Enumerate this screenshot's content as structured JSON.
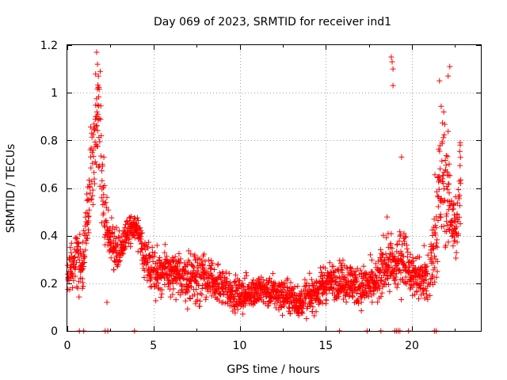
{
  "chart_data": {
    "type": "scatter",
    "title": "Day 069 of 2023, SRMTID for receiver ind1",
    "xlabel": "GPS time / hours",
    "ylabel": "SRMTID / TECUs",
    "xlim": [
      0,
      24
    ],
    "ylim": [
      0,
      1.2
    ],
    "xticks": [
      0,
      5,
      10,
      15,
      20
    ],
    "xtick_labels": [
      "0",
      "5",
      "10",
      "15",
      "20"
    ],
    "yticks": [
      0,
      0.2,
      0.4,
      0.6,
      0.8,
      1.0,
      1.2
    ],
    "ytick_labels": [
      "0",
      "0.2",
      "0.4",
      "0.6",
      "0.8",
      "1",
      "1.2"
    ],
    "grid": true,
    "marker": "+",
    "series": [
      {
        "name": "SRMTID",
        "color": "#ff0000",
        "trend": {
          "description": "approximate envelope of the scatter (hour, typical value, spread)",
          "hours": [
            0.0,
            0.3,
            0.6,
            0.9,
            1.2,
            1.5,
            1.7,
            1.9,
            2.1,
            2.4,
            2.7,
            3.0,
            3.5,
            4.0,
            4.5,
            5.0,
            6.0,
            7.0,
            7.6,
            8.0,
            9.0,
            10.0,
            11.0,
            12.0,
            13.0,
            13.5,
            14.0,
            15.0,
            16.0,
            17.0,
            18.0,
            18.5,
            19.0,
            19.5,
            20.0,
            20.5,
            21.0,
            21.5,
            21.8,
            22.0,
            22.3,
            22.6,
            22.8
          ],
          "centers": [
            0.25,
            0.28,
            0.3,
            0.28,
            0.55,
            0.7,
            0.92,
            0.85,
            0.55,
            0.42,
            0.35,
            0.32,
            0.42,
            0.44,
            0.3,
            0.26,
            0.24,
            0.22,
            0.24,
            0.22,
            0.18,
            0.15,
            0.17,
            0.16,
            0.14,
            0.12,
            0.14,
            0.2,
            0.22,
            0.18,
            0.2,
            0.3,
            0.26,
            0.32,
            0.24,
            0.22,
            0.22,
            0.5,
            0.7,
            0.6,
            0.5,
            0.4,
            0.6
          ],
          "spreads": [
            0.08,
            0.08,
            0.1,
            0.1,
            0.15,
            0.18,
            0.22,
            0.2,
            0.15,
            0.1,
            0.08,
            0.08,
            0.06,
            0.05,
            0.08,
            0.08,
            0.08,
            0.08,
            0.12,
            0.08,
            0.07,
            0.06,
            0.06,
            0.06,
            0.06,
            0.05,
            0.06,
            0.07,
            0.07,
            0.07,
            0.08,
            0.12,
            0.1,
            0.1,
            0.08,
            0.08,
            0.1,
            0.25,
            0.28,
            0.22,
            0.2,
            0.12,
            0.18
          ]
        },
        "outliers": [
          {
            "x": 1.7,
            "y": 1.17
          },
          {
            "x": 1.75,
            "y": 1.12
          },
          {
            "x": 1.8,
            "y": 1.07
          },
          {
            "x": 18.8,
            "y": 1.15
          },
          {
            "x": 18.85,
            "y": 1.13
          },
          {
            "x": 18.9,
            "y": 1.1
          },
          {
            "x": 18.9,
            "y": 1.03
          },
          {
            "x": 19.4,
            "y": 0.73
          },
          {
            "x": 22.2,
            "y": 1.11
          },
          {
            "x": 22.1,
            "y": 1.07
          },
          {
            "x": 21.6,
            "y": 1.05
          },
          {
            "x": 22.8,
            "y": 0.79
          },
          {
            "x": 22.8,
            "y": 0.78
          },
          {
            "x": 2.3,
            "y": 0.12
          }
        ],
        "zero_points_hours": [
          0.7,
          0.95,
          2.2,
          2.35,
          3.9,
          15.8,
          17.4,
          18.2,
          19.0,
          19.1,
          19.2,
          19.3,
          19.8,
          21.3,
          21.4
        ]
      }
    ]
  }
}
